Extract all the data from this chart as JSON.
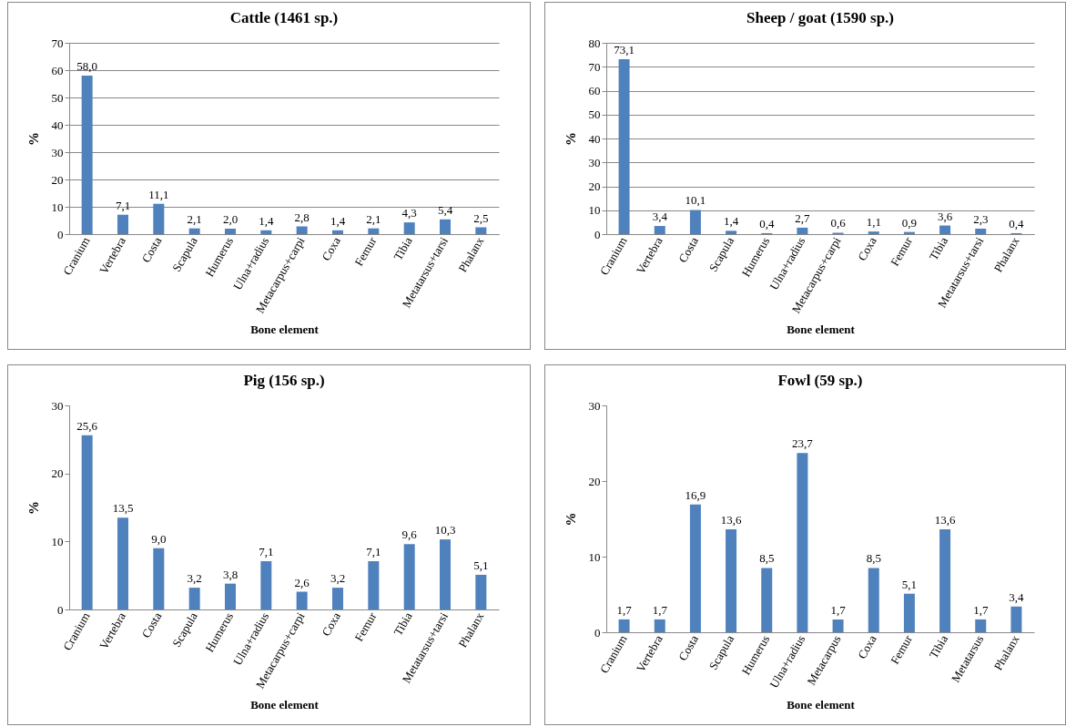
{
  "chart_data": [
    {
      "type": "bar",
      "title": "Cattle (1461 sp.)",
      "xlabel": "Bone element",
      "ylabel": "%",
      "categories": [
        "Cranium",
        "Vertebra",
        "Costa",
        "Scapula",
        "Humerus",
        "Ulna+radius",
        "Metacarpus+carpi",
        "Coxa",
        "Femur",
        "Tibia",
        "Metatarsus+tarsi",
        "Phalanx"
      ],
      "values": [
        58.0,
        7.1,
        11.1,
        2.1,
        2.0,
        1.4,
        2.8,
        1.4,
        2.1,
        4.3,
        5.4,
        2.5
      ],
      "value_labels": [
        "58,0",
        "7,1",
        "11,1",
        "2,1",
        "2,0",
        "1,4",
        "2,8",
        "1,4",
        "2,1",
        "4,3",
        "5,4",
        "2,5"
      ],
      "color": "#4f81bd",
      "ylim": [
        0,
        70
      ],
      "yticks": [
        0,
        10,
        20,
        30,
        40,
        50,
        60,
        70
      ],
      "grid": "y"
    },
    {
      "type": "bar",
      "title": "Sheep / goat (1590 sp.)",
      "xlabel": "Bone element",
      "ylabel": "%",
      "categories": [
        "Cranium",
        "Vertebra",
        "Costa",
        "Scapula",
        "Humerus",
        "Ulna+radius",
        "Metacarpus+carpi",
        "Coxa",
        "Femur",
        "Tibia",
        "Metatarsus+tarsi",
        "Phalanx"
      ],
      "values": [
        73.1,
        3.4,
        10.1,
        1.4,
        0.4,
        2.7,
        0.6,
        1.1,
        0.9,
        3.6,
        2.3,
        0.4
      ],
      "value_labels": [
        "73,1",
        "3,4",
        "10,1",
        "1,4",
        "0,4",
        "2,7",
        "0,6",
        "1,1",
        "0,9",
        "3,6",
        "2,3",
        "0,4"
      ],
      "color": "#4f81bd",
      "ylim": [
        0,
        80
      ],
      "yticks": [
        0,
        10,
        20,
        30,
        40,
        50,
        60,
        70,
        80
      ],
      "grid": "y"
    },
    {
      "type": "bar",
      "title": "Pig (156 sp.)",
      "xlabel": "Bone element",
      "ylabel": "%",
      "categories": [
        "Cranium",
        "Vertebra",
        "Costa",
        "Scapula",
        "Humerus",
        "Ulna+radius",
        "Metacarpus+carpi",
        "Coxa",
        "Femur",
        "Tibia",
        "Metatarsus+tarsi",
        "Phalanx"
      ],
      "values": [
        25.6,
        13.5,
        9.0,
        3.2,
        3.8,
        7.1,
        2.6,
        3.2,
        7.1,
        9.6,
        10.3,
        5.1
      ],
      "value_labels": [
        "25,6",
        "13,5",
        "9,0",
        "3,2",
        "3,8",
        "7,1",
        "2,6",
        "3,2",
        "7,1",
        "9,6",
        "10,3",
        "5,1"
      ],
      "color": "#4f81bd",
      "ylim": [
        0,
        30
      ],
      "yticks": [
        0,
        10,
        20,
        30
      ]
    },
    {
      "type": "bar",
      "title": "Fowl (59 sp.)",
      "xlabel": "Bone element",
      "ylabel": "%",
      "categories": [
        "Cranium",
        "Vertebra",
        "Costa",
        "Scapula",
        "Humerus",
        "Ulna+radius",
        "Metacarpus",
        "Coxa",
        "Femur",
        "Tibia",
        "Metatarsus",
        "Phalanx"
      ],
      "values": [
        1.7,
        1.7,
        16.9,
        13.6,
        8.5,
        23.7,
        1.7,
        8.5,
        5.1,
        13.6,
        1.7,
        3.4
      ],
      "value_labels": [
        "1,7",
        "1,7",
        "16,9",
        "13,6",
        "8,5",
        "23,7",
        "1,7",
        "8,5",
        "5,1",
        "13,6",
        "1,7",
        "3,4"
      ],
      "color": "#4f81bd",
      "ylim": [
        0,
        30
      ],
      "yticks": [
        0,
        10,
        20,
        30
      ]
    }
  ]
}
